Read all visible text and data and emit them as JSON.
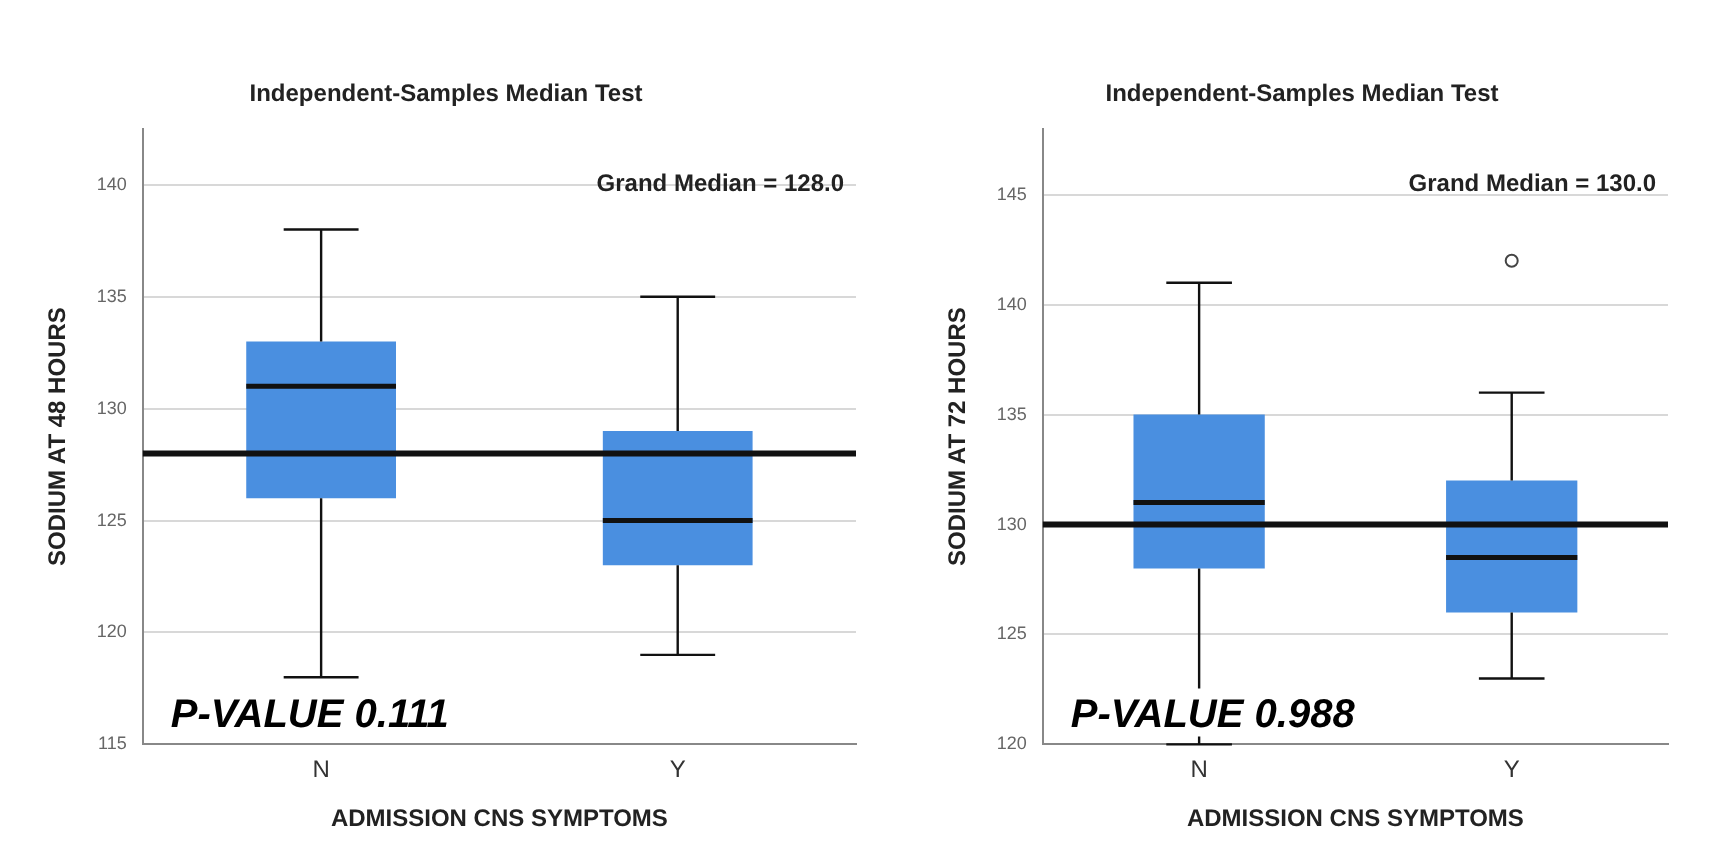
{
  "chart_data": [
    {
      "type": "box",
      "title": "Independent-Samples Median Test",
      "xlabel": "ADMISSION CNS SYMPTOMS",
      "ylabel": "SODIUM AT 48 HOURS",
      "categories": [
        "N",
        "Y"
      ],
      "color": "#4a8fe0",
      "boxes": [
        {
          "low": 118,
          "q1": 126,
          "median": 131,
          "q3": 133,
          "high": 138
        },
        {
          "low": 119,
          "q1": 123,
          "median": 125,
          "q3": 129,
          "high": 135
        }
      ],
      "ylim": [
        115,
        142.5
      ],
      "yticks": [
        115,
        120,
        125,
        130,
        135,
        140
      ],
      "grid": "y",
      "ref_lines": [
        {
          "axis": "y",
          "value": 128,
          "label": "Grand Median = 128.0",
          "color": "#111111"
        }
      ],
      "annotations": [
        "P-VALUE 0.111"
      ]
    },
    {
      "type": "box",
      "title": "Independent-Samples Median Test",
      "xlabel": "ADMISSION CNS SYMPTOMS",
      "ylabel": "SODIUM AT 72 HOURS",
      "categories": [
        "N",
        "Y"
      ],
      "color": "#4a8fe0",
      "boxes": [
        {
          "low": 120,
          "q1": 128,
          "median": 131,
          "q3": 135,
          "high": 141
        },
        {
          "low": 123,
          "q1": 126,
          "median": 128.5,
          "q3": 132,
          "high": 136,
          "outliers": [
            142
          ]
        }
      ],
      "ylim": [
        120,
        148
      ],
      "yticks": [
        120,
        125,
        130,
        135,
        140,
        145
      ],
      "grid": "y",
      "ref_lines": [
        {
          "axis": "y",
          "value": 130,
          "label": "Grand Median = 130.0",
          "color": "#111111"
        }
      ],
      "annotations": [
        "P-VALUE 0.988"
      ]
    }
  ]
}
